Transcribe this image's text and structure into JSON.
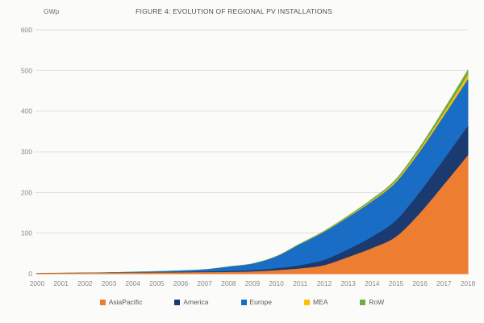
{
  "title": "FIGURE 4: EVOLUTION OF REGIONAL PV INSTALLATIONS",
  "y_axis_unit": "GWp",
  "chart_data": {
    "type": "area",
    "stacked": true,
    "title": "FIGURE 4: EVOLUTION OF REGIONAL PV INSTALLATIONS",
    "ylabel": "GWp",
    "x": [
      2000,
      2001,
      2002,
      2003,
      2004,
      2005,
      2006,
      2007,
      2008,
      2009,
      2010,
      2011,
      2012,
      2013,
      2014,
      2015,
      2016,
      2017,
      2018
    ],
    "series": [
      {
        "name": "AsiaPacific",
        "color": "#ED7D31",
        "values": [
          0.5,
          0.7,
          0.9,
          1.2,
          1.7,
          2.0,
          2.4,
          2.8,
          3.3,
          4.5,
          7.5,
          12,
          20,
          40,
          62,
          90,
          148,
          218,
          290
        ]
      },
      {
        "name": "America",
        "color": "#1B3A6F",
        "values": [
          0.2,
          0.3,
          0.4,
          0.5,
          0.7,
          0.9,
          1.2,
          1.7,
          2.4,
          3.2,
          5,
          8,
          13,
          19,
          28,
          40,
          52,
          62,
          72
        ]
      },
      {
        "name": "Europe",
        "color": "#1A6DC4",
        "values": [
          0.2,
          0.3,
          0.4,
          0.6,
          1.3,
          2.3,
          3.3,
          5.2,
          10.8,
          16,
          29,
          52,
          69,
          79,
          87,
          94,
          100,
          107,
          115
        ]
      },
      {
        "name": "MEA",
        "color": "#FFC000",
        "values": [
          0.05,
          0.05,
          0.1,
          0.1,
          0.1,
          0.1,
          0.15,
          0.2,
          0.25,
          0.3,
          0.4,
          0.6,
          1,
          1.5,
          2.5,
          3.5,
          5,
          7,
          10
        ]
      },
      {
        "name": "RoW",
        "color": "#70AD47",
        "values": [
          0.1,
          0.1,
          0.15,
          0.2,
          0.2,
          0.3,
          0.35,
          0.4,
          0.5,
          0.7,
          1,
          1.5,
          2,
          3,
          4,
          5,
          7,
          10,
          14
        ]
      }
    ],
    "ylim": [
      0,
      600
    ],
    "yticks": [
      0,
      100,
      200,
      300,
      400,
      500,
      600
    ],
    "grid": true,
    "legend_position": "bottom",
    "colors": {
      "grid": "#dddddd",
      "axis_text": "#8a8a8a",
      "baseline": "#c8c8c8"
    }
  }
}
